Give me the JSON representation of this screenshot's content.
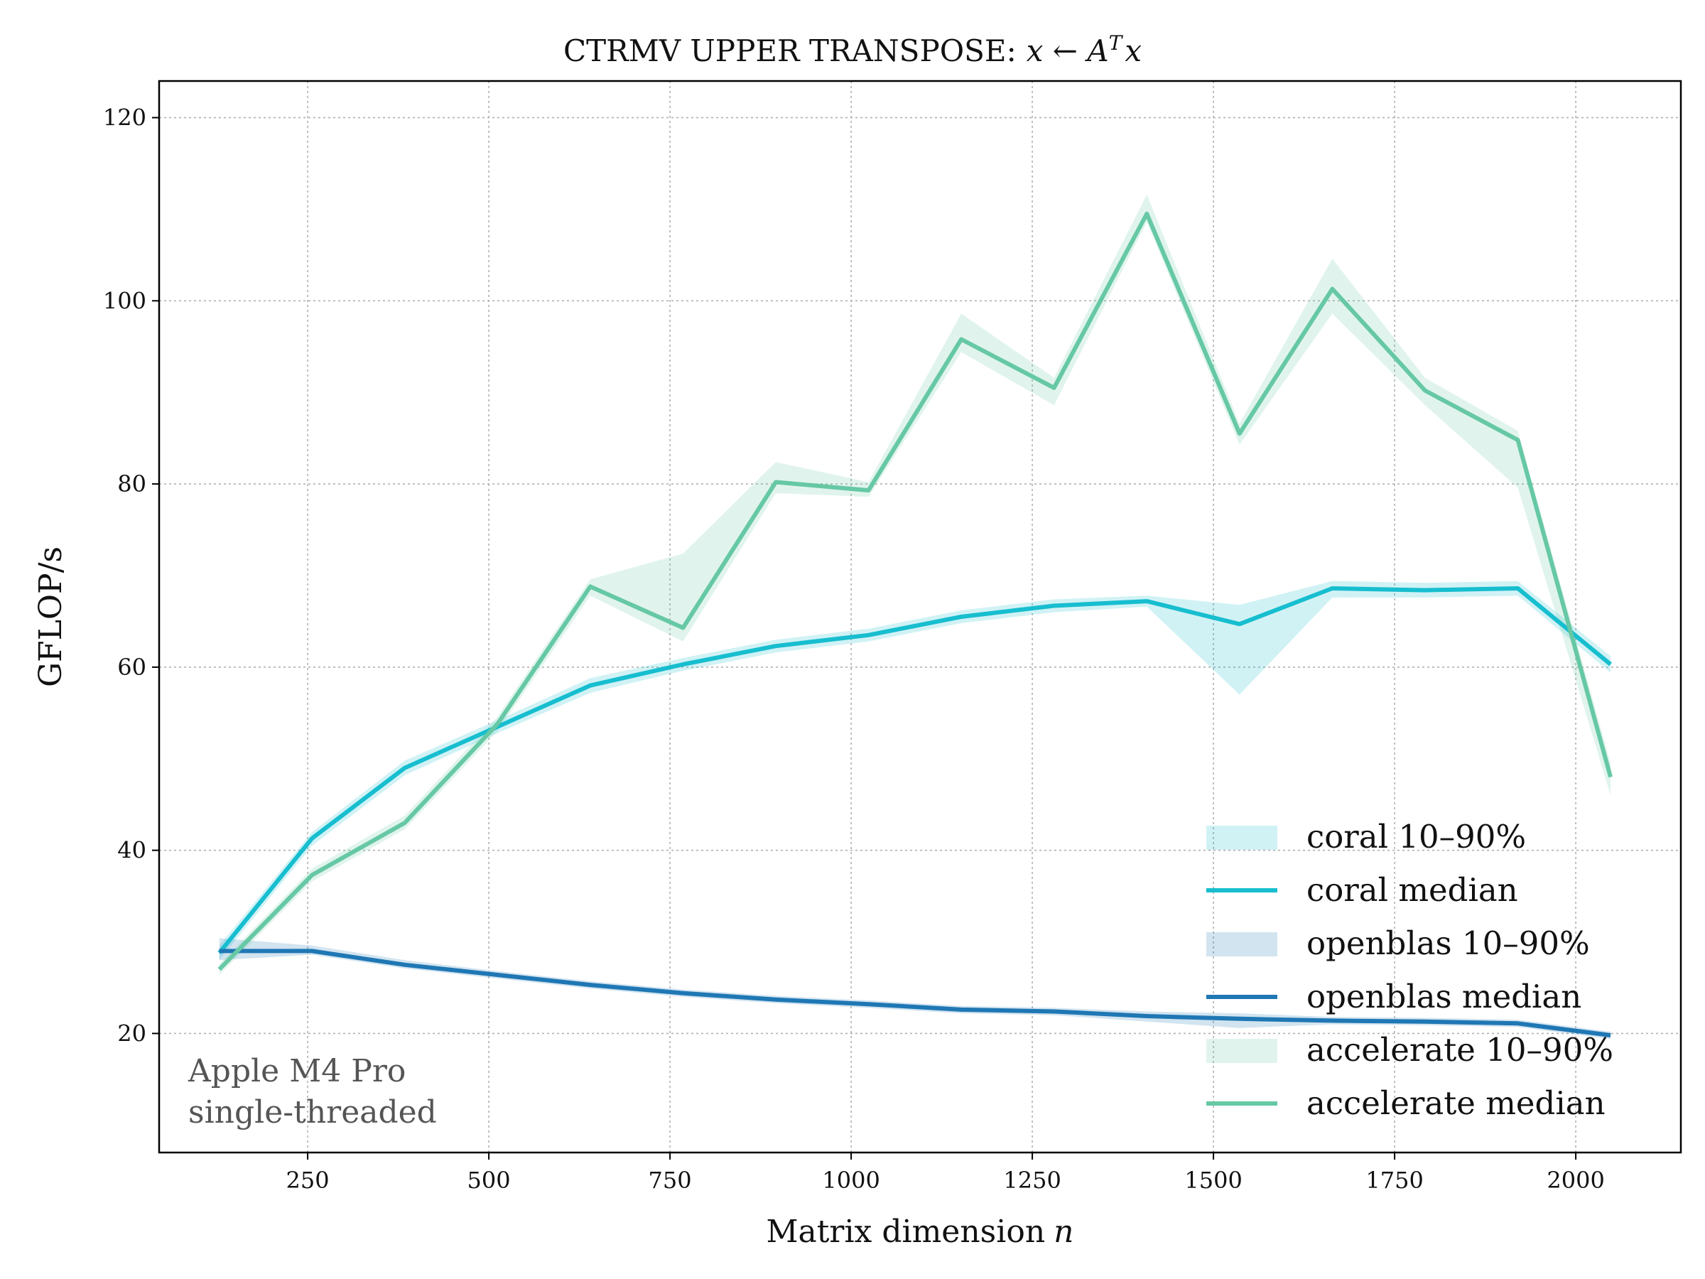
{
  "chart_data": {
    "type": "line",
    "title_prefix": "CTRMV UPPER TRANSPOSE:",
    "title_math": "x ← A",
    "title_math_sup": "T",
    "title_math_end": "x",
    "xlabel": "Matrix dimension",
    "xlabel_var": "n",
    "ylabel": "GFLOP/s",
    "xlim": [
      45,
      2145
    ],
    "ylim": [
      7,
      124
    ],
    "xticks": [
      250,
      500,
      750,
      1000,
      1250,
      1500,
      1750,
      2000
    ],
    "yticks": [
      20,
      40,
      60,
      80,
      100,
      120
    ],
    "grid": true,
    "legend_position": "lower-right",
    "annotation": [
      "Apple M4 Pro",
      "single-threaded"
    ],
    "x": [
      128,
      256,
      384,
      512,
      640,
      768,
      896,
      1024,
      1152,
      1280,
      1408,
      1536,
      1664,
      1792,
      1920,
      2048
    ],
    "series": [
      {
        "name": "coral",
        "color": "#17becf",
        "median": [
          28.8,
          41.3,
          49.0,
          53.5,
          58.0,
          60.3,
          62.3,
          63.5,
          65.5,
          66.7,
          67.2,
          64.7,
          68.6,
          68.4,
          68.6,
          60.3
        ],
        "p10": [
          28.0,
          40.5,
          48.2,
          52.8,
          57.2,
          59.6,
          61.6,
          62.8,
          64.8,
          66.0,
          66.6,
          57.0,
          67.6,
          67.6,
          67.8,
          59.4
        ],
        "p90": [
          29.6,
          42.0,
          49.8,
          54.2,
          58.8,
          61.0,
          63.0,
          64.2,
          66.2,
          67.4,
          67.8,
          66.8,
          69.4,
          69.2,
          69.4,
          61.2
        ]
      },
      {
        "name": "openblas",
        "color": "#1f77b4",
        "median": [
          29.0,
          29.0,
          27.5,
          26.4,
          25.3,
          24.4,
          23.7,
          23.2,
          22.6,
          22.4,
          21.9,
          21.6,
          21.4,
          21.3,
          21.1,
          19.8
        ],
        "p10": [
          28.0,
          28.6,
          27.1,
          26.0,
          24.9,
          24.0,
          23.3,
          22.8,
          22.2,
          22.0,
          21.3,
          20.6,
          21.0,
          20.9,
          20.7,
          19.4
        ],
        "p90": [
          30.4,
          29.6,
          28.0,
          26.8,
          25.7,
          24.8,
          24.1,
          23.6,
          23.0,
          22.8,
          22.4,
          22.2,
          21.8,
          21.7,
          21.5,
          20.2
        ]
      },
      {
        "name": "accelerate",
        "color": "#66c8a4",
        "median": [
          27.0,
          37.3,
          43.0,
          53.8,
          68.8,
          64.3,
          80.2,
          79.3,
          95.8,
          90.5,
          109.5,
          85.5,
          101.3,
          90.2,
          84.8,
          48.0
        ],
        "p10": [
          26.4,
          36.6,
          42.3,
          53.0,
          67.8,
          62.8,
          79.0,
          78.6,
          94.4,
          88.6,
          108.6,
          84.3,
          98.6,
          88.6,
          79.6,
          46.0
        ],
        "p90": [
          27.6,
          38.0,
          43.8,
          54.6,
          69.6,
          72.4,
          82.4,
          80.2,
          98.6,
          91.6,
          111.6,
          86.6,
          104.6,
          91.6,
          85.8,
          49.5
        ]
      }
    ],
    "legend": [
      {
        "label": "coral 10–90%",
        "kind": "band",
        "color": "#17becf"
      },
      {
        "label": "coral median",
        "kind": "line",
        "color": "#17becf"
      },
      {
        "label": "openblas 10–90%",
        "kind": "band",
        "color": "#1f77b4"
      },
      {
        "label": "openblas median",
        "kind": "line",
        "color": "#1f77b4"
      },
      {
        "label": "accelerate 10–90%",
        "kind": "band",
        "color": "#66c8a4"
      },
      {
        "label": "accelerate median",
        "kind": "line",
        "color": "#66c8a4"
      }
    ]
  }
}
